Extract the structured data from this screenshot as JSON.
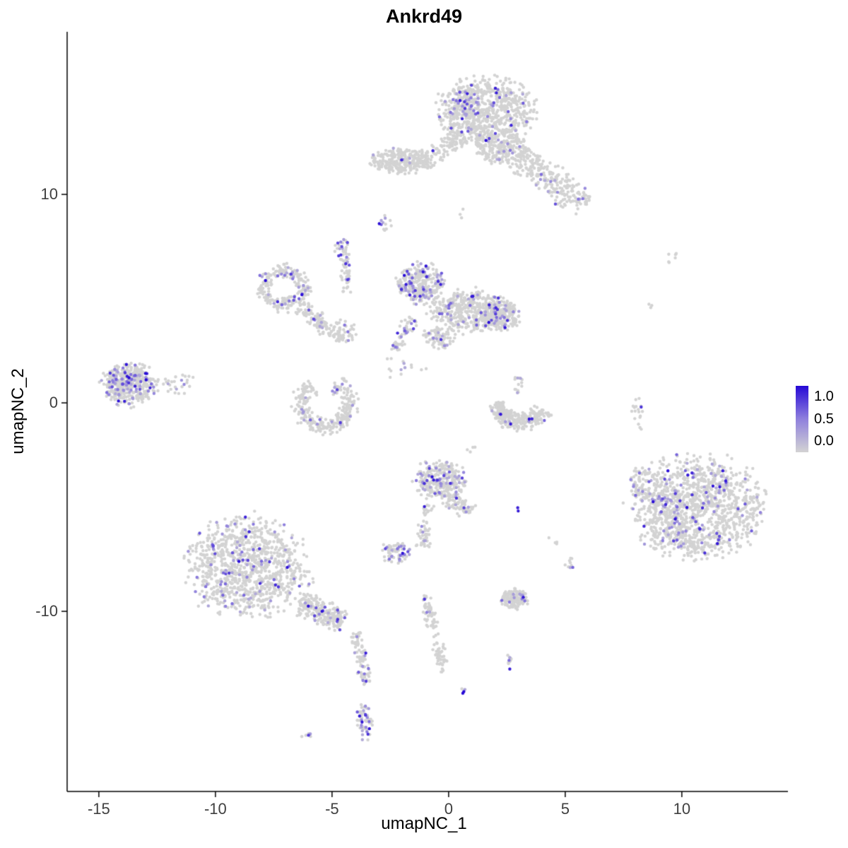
{
  "chart_data": {
    "type": "scatter",
    "title": "Ankrd49",
    "xlabel": "umapNC_1",
    "ylabel": "umapNC_2",
    "xlim": [
      -16.36,
      14.55
    ],
    "ylim": [
      -18.64,
      17.8
    ],
    "xticks": [
      -15,
      -10,
      -5,
      0,
      5,
      10
    ],
    "yticks": [
      -10,
      0,
      10
    ],
    "grid": false,
    "legend_position": "right",
    "legend": {
      "labels": [
        "1.0",
        "0.5",
        "0.0"
      ],
      "values": [
        1.0,
        0.5,
        0.0
      ]
    },
    "colors": {
      "zero": "#d3d3d3",
      "mid": "#8f80dd",
      "high": "#2609d6",
      "axis": "#000000",
      "background": "#ffffff"
    },
    "point_radius": 2.2,
    "seed": 7,
    "clusters": [
      {
        "shape": "blob",
        "x": 1.6,
        "y": 14.0,
        "rx": 1.9,
        "ry": 1.5,
        "n": 750,
        "frac": 0.05
      },
      {
        "shape": "blob",
        "x": 0.8,
        "y": 14.3,
        "rx": 0.7,
        "ry": 0.8,
        "n": 60,
        "frac": 0.5
      },
      {
        "shape": "blob",
        "x": 2.3,
        "y": 12.2,
        "rx": 1.1,
        "ry": 0.8,
        "n": 220,
        "frac": 0.05
      },
      {
        "shape": "trail",
        "x1": 3.0,
        "y1": 11.8,
        "x2": 5.9,
        "y2": 9.5,
        "w": 0.85,
        "n": 240,
        "frac": 0.04
      },
      {
        "shape": "blob",
        "x": -1.9,
        "y": 11.6,
        "rx": 1.4,
        "ry": 0.55,
        "n": 300,
        "frac": 0.02
      },
      {
        "shape": "trail",
        "x1": -0.6,
        "y1": 11.9,
        "x2": 0.6,
        "y2": 12.9,
        "w": 0.5,
        "n": 90,
        "frac": 0.03
      },
      {
        "shape": "blob",
        "x": -2.8,
        "y": 8.6,
        "rx": 0.3,
        "ry": 0.35,
        "n": 12,
        "frac": 0.35
      },
      {
        "shape": "blob",
        "x": -4.6,
        "y": 7.5,
        "rx": 0.3,
        "ry": 0.45,
        "n": 22,
        "frac": 0.5
      },
      {
        "shape": "trail",
        "x1": -4.5,
        "y1": 7.2,
        "x2": -4.4,
        "y2": 5.3,
        "w": 0.25,
        "n": 45,
        "frac": 0.12
      },
      {
        "shape": "blob",
        "x": 0.5,
        "y": 9.1,
        "rx": 0.3,
        "ry": 0.3,
        "n": 3,
        "frac": 0
      },
      {
        "shape": "blob",
        "x": -1.2,
        "y": 5.7,
        "rx": 0.95,
        "ry": 0.9,
        "n": 300,
        "frac": 0.22
      },
      {
        "shape": "blob",
        "x": 0.9,
        "y": 4.4,
        "rx": 1.6,
        "ry": 0.95,
        "n": 430,
        "frac": 0.08
      },
      {
        "shape": "blob",
        "x": 2.2,
        "y": 4.2,
        "rx": 0.85,
        "ry": 0.7,
        "n": 190,
        "frac": 0.14
      },
      {
        "shape": "trail",
        "x1": -1.6,
        "y1": 4.1,
        "x2": -2.3,
        "y2": 2.5,
        "w": 0.4,
        "n": 60,
        "frac": 0.18
      },
      {
        "shape": "blob",
        "x": -0.4,
        "y": 3.1,
        "rx": 0.7,
        "ry": 0.5,
        "n": 80,
        "frac": 0.06
      },
      {
        "shape": "blob",
        "x": -1.9,
        "y": 1.7,
        "rx": 0.8,
        "ry": 0.6,
        "n": 14,
        "frac": 0.1
      },
      {
        "shape": "ring",
        "x": -7.1,
        "y": 5.5,
        "r": 0.85,
        "w": 0.4,
        "a0": 0,
        "a1": 360,
        "n": 230,
        "frac": 0.13
      },
      {
        "shape": "trail",
        "x1": -6.3,
        "y1": 4.7,
        "x2": -5.1,
        "y2": 3.5,
        "w": 0.5,
        "n": 90,
        "frac": 0.1
      },
      {
        "shape": "blob",
        "x": -4.6,
        "y": 3.4,
        "rx": 0.55,
        "ry": 0.5,
        "n": 60,
        "frac": 0.08
      },
      {
        "shape": "ring",
        "x": -5.3,
        "y": -0.1,
        "r": 1.05,
        "w": 0.5,
        "a0": 120,
        "a1": 430,
        "n": 290,
        "frac": 0.07
      },
      {
        "shape": "blob",
        "x": -13.7,
        "y": 0.9,
        "rx": 1.1,
        "ry": 0.95,
        "n": 420,
        "frac": 0.12
      },
      {
        "shape": "blob",
        "x": -13.9,
        "y": 1.1,
        "rx": 0.6,
        "ry": 0.5,
        "n": 50,
        "frac": 0.5
      },
      {
        "shape": "blob",
        "x": -11.6,
        "y": 0.9,
        "rx": 0.6,
        "ry": 0.6,
        "n": 26,
        "frac": 0.1
      },
      {
        "shape": "ring",
        "x": 3.1,
        "y": 0.2,
        "r": 1.1,
        "w": 0.5,
        "a0": 190,
        "a1": 330,
        "n": 280,
        "frac": 0.02
      },
      {
        "shape": "blob",
        "x": 3.0,
        "y": 1.0,
        "rx": 0.2,
        "ry": 0.6,
        "n": 14,
        "frac": 0.3
      },
      {
        "shape": "blob",
        "x": -0.4,
        "y": -3.7,
        "rx": 1.0,
        "ry": 0.85,
        "n": 290,
        "frac": 0.16
      },
      {
        "shape": "trail",
        "x1": 0.0,
        "y1": -4.5,
        "x2": 0.9,
        "y2": -5.3,
        "w": 0.5,
        "n": 70,
        "frac": 0.12
      },
      {
        "shape": "trail",
        "x1": -0.9,
        "y1": -4.9,
        "x2": -1.1,
        "y2": -6.9,
        "w": 0.35,
        "n": 60,
        "frac": 0.1
      },
      {
        "shape": "blob",
        "x": -2.3,
        "y": -7.2,
        "rx": 0.55,
        "ry": 0.5,
        "n": 70,
        "frac": 0.3
      },
      {
        "shape": "blob",
        "x": 3.0,
        "y": -5.1,
        "rx": 0.15,
        "ry": 0.1,
        "n": 2,
        "frac": 0.6,
        "vmin": 0.9
      },
      {
        "shape": "blob",
        "x": 1.0,
        "y": -2.1,
        "rx": 0.3,
        "ry": 0.25,
        "n": 4,
        "frac": 0
      },
      {
        "shape": "blob",
        "x": -8.6,
        "y": -7.9,
        "rx": 2.4,
        "ry": 2.2,
        "n": 1000,
        "frac": 0.1
      },
      {
        "shape": "trail",
        "x1": -6.4,
        "y1": -9.5,
        "x2": -4.5,
        "y2": -10.6,
        "w": 0.7,
        "n": 220,
        "frac": 0.09
      },
      {
        "shape": "trail",
        "x1": -4.0,
        "y1": -11.0,
        "x2": -3.5,
        "y2": -13.6,
        "w": 0.35,
        "n": 90,
        "frac": 0.12
      },
      {
        "shape": "blob",
        "x": -3.6,
        "y": -15.3,
        "rx": 0.35,
        "ry": 0.8,
        "n": 55,
        "frac": 0.3
      },
      {
        "shape": "blob",
        "x": -6.1,
        "y": -16.0,
        "rx": 0.25,
        "ry": 0.2,
        "n": 6,
        "frac": 0.4
      },
      {
        "shape": "trail",
        "x1": -1.0,
        "y1": -9.2,
        "x2": -0.7,
        "y2": -10.8,
        "w": 0.3,
        "n": 50,
        "frac": 0.12
      },
      {
        "shape": "trail",
        "x1": -0.6,
        "y1": -11.1,
        "x2": -0.2,
        "y2": -12.9,
        "w": 0.3,
        "n": 45,
        "frac": 0.04
      },
      {
        "shape": "blob",
        "x": 2.8,
        "y": -9.4,
        "rx": 0.55,
        "ry": 0.45,
        "n": 150,
        "frac": 0.06
      },
      {
        "shape": "blob",
        "x": 2.6,
        "y": -12.4,
        "rx": 0.2,
        "ry": 0.35,
        "n": 10,
        "frac": 0.35
      },
      {
        "shape": "blob",
        "x": 0.6,
        "y": -13.8,
        "rx": 0.15,
        "ry": 0.15,
        "n": 4,
        "frac": 0.5
      },
      {
        "shape": "blob",
        "x": 10.7,
        "y": -5.0,
        "rx": 2.6,
        "ry": 2.25,
        "n": 1200,
        "frac": 0.08
      },
      {
        "shape": "blob",
        "x": 9.5,
        "y": -5.3,
        "rx": 0.7,
        "ry": 1.3,
        "n": 90,
        "frac": 0.35
      },
      {
        "shape": "blob",
        "x": 8.3,
        "y": -3.9,
        "rx": 0.5,
        "ry": 0.8,
        "n": 70,
        "frac": 0.12
      },
      {
        "shape": "trail",
        "x1": 8.0,
        "y1": 0.2,
        "x2": 8.2,
        "y2": -1.3,
        "w": 0.25,
        "n": 18,
        "frac": 0.05
      },
      {
        "shape": "blob",
        "x": 9.6,
        "y": 6.9,
        "rx": 0.3,
        "ry": 0.25,
        "n": 6,
        "frac": 0
      },
      {
        "shape": "blob",
        "x": 8.6,
        "y": 4.7,
        "rx": 0.15,
        "ry": 0.15,
        "n": 3,
        "frac": 0
      },
      {
        "shape": "blob",
        "x": 5.2,
        "y": -7.7,
        "rx": 0.25,
        "ry": 0.35,
        "n": 9,
        "frac": 0.25
      },
      {
        "shape": "blob",
        "x": 4.5,
        "y": -6.6,
        "rx": 0.2,
        "ry": 0.2,
        "n": 4,
        "frac": 0
      }
    ]
  }
}
